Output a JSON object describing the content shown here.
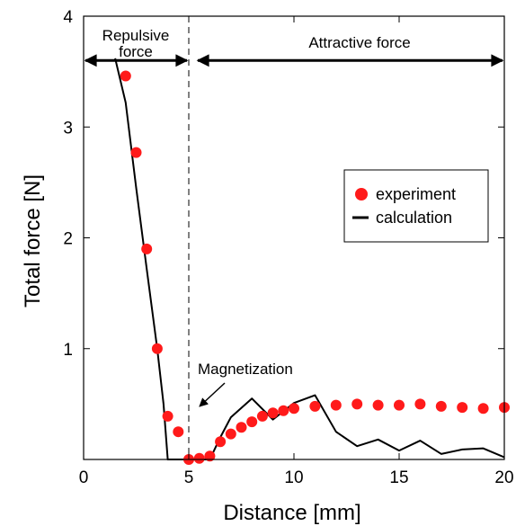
{
  "chart_data": {
    "type": "scatter",
    "xlabel": "Distance [mm]",
    "ylabel": "Total force [N]",
    "xlim": [
      0,
      20
    ],
    "ylim": [
      0,
      4
    ],
    "xticks": [
      "0",
      "5",
      "10",
      "15",
      "20"
    ],
    "yticks": [
      "1",
      "2",
      "3",
      "4"
    ],
    "grid": false,
    "legend": {
      "placement": "right-middle"
    },
    "series": [
      {
        "name": "experiment",
        "kind": "scatter",
        "color": "#ff1a1a",
        "x": [
          2,
          2.5,
          3,
          3.5,
          4,
          4.5,
          5,
          5.5,
          6,
          6.5,
          7,
          7.5,
          8,
          8.5,
          9,
          9.5,
          10,
          11,
          12,
          13,
          14,
          15,
          16,
          17,
          18,
          19,
          20
        ],
        "y": [
          3.46,
          2.77,
          1.9,
          1.0,
          0.39,
          0.25,
          0.0,
          0.01,
          0.03,
          0.16,
          0.23,
          0.29,
          0.34,
          0.39,
          0.42,
          0.44,
          0.46,
          0.48,
          0.49,
          0.5,
          0.49,
          0.49,
          0.5,
          0.48,
          0.47,
          0.46,
          0.47
        ]
      },
      {
        "name": "calculation",
        "kind": "line",
        "color": "#000000",
        "x": [
          1.5,
          2,
          2.5,
          3,
          3.5,
          3.8,
          4,
          5,
          6,
          6.5,
          7,
          8,
          9,
          10,
          11,
          12,
          13,
          14,
          15,
          16,
          17,
          18,
          19,
          20
        ],
        "y": [
          3.62,
          3.22,
          2.45,
          1.72,
          1.0,
          0.5,
          0.0,
          0.0,
          0.0,
          0.2,
          0.38,
          0.55,
          0.36,
          0.51,
          0.58,
          0.25,
          0.12,
          0.18,
          0.08,
          0.17,
          0.05,
          0.09,
          0.1,
          0.02
        ]
      }
    ],
    "annotations": {
      "divider_x": 5,
      "repulsive_label_line1": "Repulsive",
      "repulsive_label_line2": "force",
      "attractive_label": "Attractive force",
      "magnetization_label": "Magnetization",
      "arrow_y": 3.6
    }
  }
}
